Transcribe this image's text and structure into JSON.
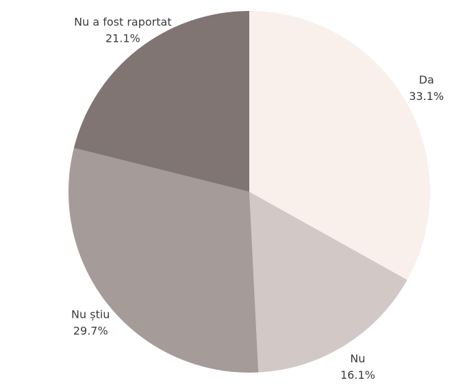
{
  "chart_data": {
    "type": "pie",
    "slices": [
      {
        "label": "Da",
        "value": 33.1,
        "value_label": "33.1%",
        "color": "#f9f0eb"
      },
      {
        "label": "Nu",
        "value": 16.1,
        "value_label": "16.1%",
        "color": "#d2c8c6"
      },
      {
        "label": "Nu știu",
        "value": 29.7,
        "value_label": "29.7%",
        "color": "#a59c9a"
      },
      {
        "label": "Nu a fost raportat",
        "value": 21.1,
        "value_label": "21.1%",
        "color": "#807573"
      }
    ],
    "start_angle": "12 o'clock",
    "direction": "clockwise",
    "legend": "none"
  }
}
